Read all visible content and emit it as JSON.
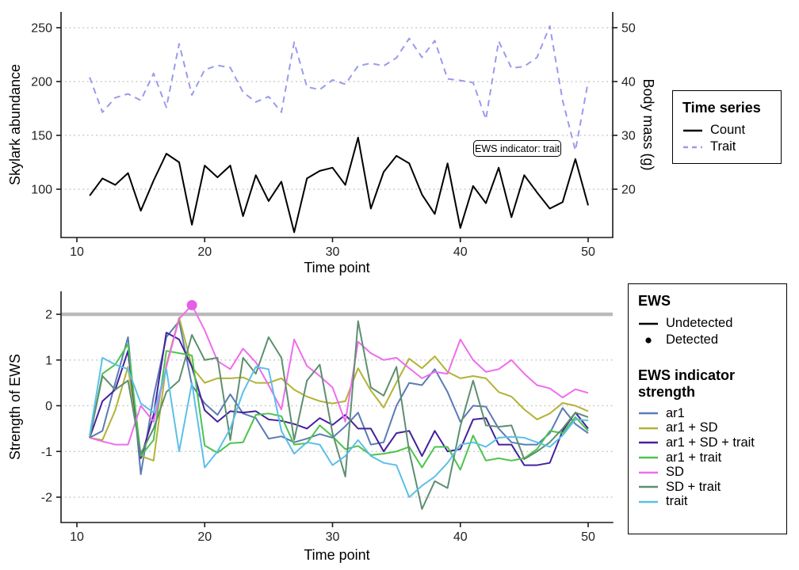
{
  "figure": {
    "background": "#ffffff"
  },
  "annotation": {
    "text": "EWS indicator: trait"
  },
  "legends": {
    "time_series": {
      "title": "Time series",
      "items": [
        {
          "label": "Count",
          "color": "#000000",
          "dash": "solid"
        },
        {
          "label": "Trait",
          "color": "#9a9aee",
          "dash": "dashed"
        }
      ]
    },
    "ews": {
      "title": "EWS",
      "items": [
        {
          "label": "Undetected",
          "glyph": "line",
          "color": "#000000"
        },
        {
          "label": "Detected",
          "glyph": "point",
          "color": "#000000"
        }
      ],
      "strength_title": "EWS indicator strength",
      "strength_items": [
        {
          "label": "ar1",
          "color": "#5a7cb5"
        },
        {
          "label": "ar1 + SD",
          "color": "#b3b236"
        },
        {
          "label": "ar1 + SD + trait",
          "color": "#45219d"
        },
        {
          "label": "ar1 + trait",
          "color": "#4cc44c"
        },
        {
          "label": "SD",
          "color": "#ee6ded"
        },
        {
          "label": "SD + trait",
          "color": "#5e8f70"
        },
        {
          "label": "trait",
          "color": "#5cbfe8"
        }
      ]
    }
  },
  "chart_data": [
    {
      "id": "abundance_panel",
      "type": "line",
      "xlabel": "Time point",
      "ylabel_left": "Skylark abundance",
      "ylabel_right": "Body mass (g)",
      "x_ticks": [
        10,
        20,
        30,
        40,
        50
      ],
      "y_ticks_left": [
        100,
        150,
        200,
        250
      ],
      "y_ticks_right": [
        20,
        30,
        40,
        50
      ],
      "xlim": [
        8.8,
        52
      ],
      "ylim_left": [
        51,
        265
      ],
      "ylim_right": [
        10.2,
        53
      ],
      "grid": "horizontal dotted",
      "legend_title": "Time series",
      "x": [
        11,
        12,
        13,
        14,
        15,
        16,
        17,
        18,
        19,
        20,
        21,
        22,
        23,
        24,
        25,
        26,
        27,
        28,
        29,
        30,
        31,
        32,
        33,
        34,
        35,
        36,
        37,
        38,
        39,
        40,
        41,
        42,
        43,
        44,
        45,
        46,
        47,
        48,
        49,
        50
      ],
      "series": [
        {
          "name": "Count",
          "axis": "left",
          "color": "#000000",
          "style": "solid",
          "values": [
            94,
            110,
            104,
            115,
            80,
            108,
            133,
            125,
            67,
            122,
            111,
            122,
            75,
            113,
            89,
            107,
            60,
            110,
            117,
            120,
            104,
            148,
            82,
            116,
            131,
            124,
            95,
            77,
            124,
            64,
            103,
            87,
            120,
            74,
            113,
            97,
            82,
            88,
            128,
            85
          ]
        },
        {
          "name": "Trait",
          "axis": "right",
          "color": "#9a9aee",
          "style": "dashed",
          "values": [
            40.8,
            34.3,
            37.0,
            37.7,
            36.5,
            41.5,
            35.2,
            47.0,
            37.5,
            42.2,
            43.0,
            42.6,
            38.0,
            36.2,
            37.2,
            34.3,
            47.3,
            39.0,
            38.5,
            40.3,
            39.5,
            42.9,
            43.4,
            42.9,
            44.4,
            48.0,
            44.5,
            47.6,
            40.5,
            40.2,
            39.8,
            33.0,
            47.5,
            42.5,
            42.8,
            44.5,
            50.3,
            36.5,
            27.2,
            40.0
          ]
        }
      ],
      "annotation": {
        "text": "EWS indicator: trait"
      }
    },
    {
      "id": "ews_strength_panel",
      "type": "line",
      "xlabel": "Time point",
      "ylabel": "Strength of EWS",
      "x_ticks": [
        10,
        20,
        30,
        40,
        50
      ],
      "y_ticks": [
        -2,
        -1,
        0,
        1,
        2
      ],
      "xlim": [
        8.8,
        52
      ],
      "ylim": [
        -2.55,
        2.5
      ],
      "grid": "horizontal dotted",
      "threshold_line": {
        "y": 2,
        "color": "#bababa"
      },
      "detected_point": {
        "series": "SD",
        "x": 19,
        "y": 2.2,
        "color": "#e45fe4"
      },
      "x": [
        11,
        12,
        13,
        14,
        15,
        16,
        17,
        18,
        19,
        20,
        21,
        22,
        23,
        24,
        25,
        26,
        27,
        28,
        29,
        30,
        31,
        32,
        33,
        34,
        35,
        36,
        37,
        38,
        39,
        40,
        41,
        42,
        43,
        44,
        45,
        46,
        47,
        48,
        49,
        50
      ],
      "series": [
        {
          "name": "ar1",
          "color": "#5a7cb5",
          "values": [
            -0.7,
            -0.55,
            0.5,
            1.5,
            -1.5,
            0.2,
            1.5,
            1.85,
            0.45,
            0.05,
            -0.2,
            0.25,
            -0.17,
            -0.27,
            -0.72,
            -0.67,
            -0.8,
            -0.72,
            -0.62,
            -0.7,
            -0.45,
            -0.15,
            -0.85,
            -0.8,
            0.0,
            0.5,
            0.45,
            0.8,
            0.3,
            -0.35,
            0.0,
            -0.02,
            -0.5,
            -0.8,
            -0.85,
            -0.85,
            -0.6,
            -0.05,
            -0.4,
            -0.6
          ]
        },
        {
          "name": "ar1 + SD",
          "color": "#b3b236",
          "values": [
            -0.7,
            -0.75,
            -0.1,
            0.85,
            -1.1,
            -1.2,
            0.9,
            1.93,
            0.85,
            0.5,
            0.6,
            0.6,
            0.62,
            0.5,
            0.5,
            0.6,
            0.35,
            0.2,
            0.1,
            0.05,
            0.1,
            0.82,
            0.33,
            -0.04,
            0.51,
            1.03,
            0.82,
            1.08,
            0.74,
            0.6,
            0.65,
            0.6,
            0.3,
            0.2,
            -0.08,
            -0.3,
            -0.17,
            0.06,
            0.0,
            -0.12
          ]
        },
        {
          "name": "ar1 + SD + trait",
          "color": "#45219d",
          "values": [
            -0.7,
            0.1,
            0.35,
            1.2,
            -1.15,
            -0.2,
            1.6,
            1.45,
            0.85,
            -0.1,
            -0.35,
            -0.12,
            -0.15,
            -0.12,
            -0.3,
            -0.33,
            -0.4,
            -0.5,
            -0.27,
            -0.42,
            -0.2,
            -0.5,
            -0.5,
            -1.0,
            -0.6,
            -0.55,
            -1.1,
            -0.55,
            -1.0,
            -0.95,
            -0.3,
            -0.27,
            -0.85,
            -0.85,
            -1.3,
            -1.3,
            -1.25,
            -0.55,
            -0.15,
            -0.5
          ]
        },
        {
          "name": "ar1 + trait",
          "color": "#4cc44c",
          "values": [
            -0.7,
            0.7,
            0.9,
            1.35,
            -1.1,
            -0.75,
            1.2,
            1.15,
            1.1,
            -0.87,
            -1.03,
            -0.82,
            -0.8,
            -0.2,
            -0.17,
            -0.23,
            -0.85,
            -0.82,
            -0.43,
            -0.67,
            -0.95,
            -0.88,
            -1.08,
            -1.05,
            -1.0,
            -0.9,
            -1.35,
            -0.9,
            -0.9,
            -1.4,
            -0.65,
            -1.2,
            -1.15,
            -1.2,
            -1.15,
            -0.95,
            -0.55,
            -0.6,
            -0.25,
            -0.55
          ]
        },
        {
          "name": "SD",
          "color": "#ee6ded",
          "values": [
            -0.7,
            -0.78,
            -0.85,
            -0.85,
            0.0,
            -0.35,
            0.85,
            1.9,
            2.2,
            1.65,
            0.98,
            0.8,
            1.25,
            0.95,
            0.45,
            -0.08,
            1.45,
            0.87,
            0.65,
            0.4,
            -0.35,
            1.4,
            1.15,
            1.0,
            1.05,
            0.82,
            0.6,
            0.74,
            0.7,
            1.45,
            1.0,
            0.74,
            0.8,
            1.0,
            0.7,
            0.45,
            0.38,
            0.18,
            0.36,
            0.28
          ]
        },
        {
          "name": "SD + trait",
          "color": "#5e8f70",
          "values": [
            -0.7,
            0.65,
            0.35,
            0.55,
            -1.05,
            -0.5,
            0.3,
            0.55,
            1.55,
            1.0,
            1.05,
            -0.75,
            1.05,
            0.7,
            1.5,
            1.05,
            -0.75,
            0.55,
            0.9,
            -0.6,
            -1.55,
            1.85,
            0.4,
            0.22,
            0.85,
            -1.0,
            -2.26,
            -1.65,
            -1.8,
            -0.45,
            0.55,
            -0.43,
            -0.46,
            -0.43,
            -1.17,
            -1.0,
            -0.8,
            -0.5,
            -0.15,
            -0.25
          ]
        },
        {
          "name": "trait",
          "color": "#5cbfe8",
          "values": [
            -0.65,
            1.05,
            0.9,
            0.8,
            0.05,
            -0.15,
            0.8,
            -1.0,
            0.5,
            -1.35,
            -1.0,
            -0.5,
            0.3,
            0.85,
            0.8,
            -0.55,
            -1.05,
            -0.8,
            -0.85,
            -1.3,
            -1.1,
            -0.75,
            -1.1,
            -1.25,
            -1.3,
            -2.0,
            -1.75,
            -1.55,
            -1.25,
            -0.85,
            -0.8,
            -0.9,
            -0.7,
            -0.68,
            -0.7,
            -0.8,
            -0.9,
            -0.65,
            -0.3,
            -0.32
          ]
        }
      ]
    }
  ]
}
